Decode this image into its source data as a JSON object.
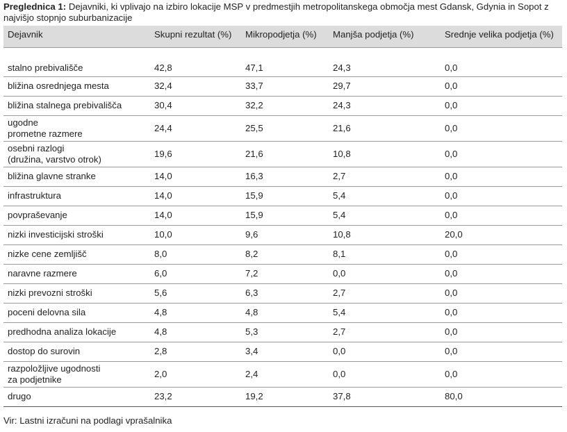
{
  "caption": {
    "label": "Preglednica 1:",
    "text": " Dejavniki, ki vplivajo na izbiro lokacije MSP v predmestjih metropolitanskega območja mest Gdansk, Gdynia in Sopot z najvišjo stopnjo suburbanizacije"
  },
  "table": {
    "headers": [
      "Dejavnik",
      "Skupni rezultat (%)",
      "Mikropodjetja (%)",
      "Manjša podjetja (%)",
      "Srednje velika podjetja (%)"
    ],
    "rows": [
      {
        "factor": "stalno prebivališče",
        "total": "42,8",
        "micro": "47,1",
        "small": "24,3",
        "medium": "0,0"
      },
      {
        "factor": "bližina osrednjega mesta",
        "total": "32,4",
        "micro": "33,7",
        "small": "29,7",
        "medium": "0,0"
      },
      {
        "factor": "bližina stalnega prebivališča",
        "total": "30,4",
        "micro": "32,2",
        "small": "24,3",
        "medium": "0,0"
      },
      {
        "factor": "ugodne\nprometne razmere",
        "total": "24,4",
        "micro": "25,5",
        "small": "21,6",
        "medium": "0,0"
      },
      {
        "factor": "osebni razlogi\n(družina, varstvo otrok)",
        "total": "19,6",
        "micro": "21,6",
        "small": "10,8",
        "medium": "0,0"
      },
      {
        "factor": "bližina glavne stranke",
        "total": "14,0",
        "micro": "16,3",
        "small": "2,7",
        "medium": "0,0"
      },
      {
        "factor": "infrastruktura",
        "total": "14,0",
        "micro": "15,9",
        "small": "5,4",
        "medium": "0,0"
      },
      {
        "factor": "povpraševanje",
        "total": "14,0",
        "micro": "15,9",
        "small": "5,4",
        "medium": "0,0"
      },
      {
        "factor": "nizki investicijski stroški",
        "total": "10,0",
        "micro": "9,6",
        "small": "10,8",
        "medium": "20,0"
      },
      {
        "factor": "nizke cene zemljišč",
        "total": "8,0",
        "micro": "8,2",
        "small": "8,1",
        "medium": "0,0"
      },
      {
        "factor": "naravne razmere",
        "total": "6,0",
        "micro": "7,2",
        "small": "0,0",
        "medium": "0,0"
      },
      {
        "factor": "nizki prevozni stroški",
        "total": "5,6",
        "micro": "6,3",
        "small": "2,7",
        "medium": "0,0"
      },
      {
        "factor": "poceni delovna sila",
        "total": "4,8",
        "micro": "4,8",
        "small": "5,4",
        "medium": "0,0"
      },
      {
        "factor": "predhodna analiza lokacije",
        "total": "4,8",
        "micro": "5,3",
        "small": "2,7",
        "medium": "0,0"
      },
      {
        "factor": "dostop do surovin",
        "total": "2,8",
        "micro": "3,4",
        "small": "0,0",
        "medium": "0,0"
      },
      {
        "factor": "razpoložljive ugodnosti\nza podjetnike",
        "total": "2,0",
        "micro": "2,4",
        "small": "0,0",
        "medium": "0,0"
      },
      {
        "factor": "drugo",
        "total": "23,2",
        "micro": "19,2",
        "small": "37,8",
        "medium": "80,0"
      }
    ]
  },
  "source": "Vir: Lastni izračuni na podlagi vprašalnika"
}
